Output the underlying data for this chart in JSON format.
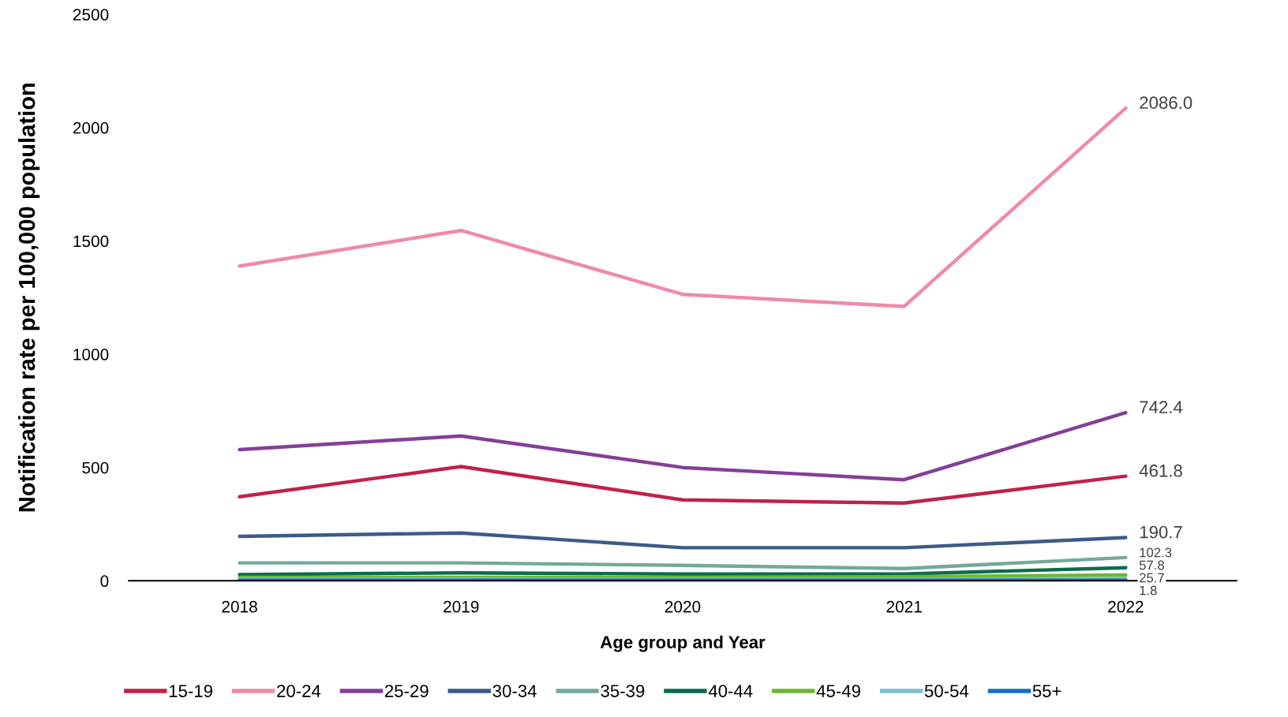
{
  "chart_data": {
    "type": "line",
    "xlabel": "Age group and Year",
    "ylabel": "Notification rate per 100,000 population",
    "categories": [
      "2018",
      "2019",
      "2020",
      "2021",
      "2022"
    ],
    "ylim": [
      0,
      2500
    ],
    "yticks": [
      0,
      500,
      1000,
      1500,
      2000,
      2500
    ],
    "grid": false,
    "legend": "bottom",
    "marker": "none",
    "line_style": "solid",
    "series": [
      {
        "name": "15-19",
        "color": "#c0214a",
        "values": [
          371,
          504,
          357,
          343,
          461.8
        ],
        "value_labels": [
          null,
          null,
          null,
          null,
          "461.8"
        ]
      },
      {
        "name": "20-24",
        "color": "#ef8aa6",
        "values": [
          1389,
          1546,
          1264,
          1211,
          2086.0
        ],
        "value_labels": [
          null,
          null,
          null,
          null,
          "2086.0"
        ]
      },
      {
        "name": "25-29",
        "color": "#843f98",
        "values": [
          579,
          639,
          500,
          446,
          742.4
        ],
        "value_labels": [
          null,
          null,
          null,
          null,
          "742.4"
        ]
      },
      {
        "name": "30-34",
        "color": "#3d5a8a",
        "values": [
          196,
          211,
          146,
          146,
          190.7
        ],
        "value_labels": [
          null,
          null,
          null,
          null,
          "190.7"
        ]
      },
      {
        "name": "35-39",
        "color": "#74a89c",
        "values": [
          79,
          79,
          68,
          54,
          102.3
        ],
        "value_labels": [
          null,
          null,
          null,
          null,
          "102.3"
        ]
      },
      {
        "name": "40-44",
        "color": "#0b6b50",
        "values": [
          27,
          35,
          30,
          30,
          57.8
        ],
        "value_labels": [
          null,
          null,
          null,
          null,
          "57.8"
        ]
      },
      {
        "name": "45-49",
        "color": "#6ab82e",
        "values": [
          15,
          15,
          15,
          18,
          25.7
        ],
        "value_labels": [
          null,
          null,
          null,
          null,
          "25.7"
        ]
      },
      {
        "name": "50-54",
        "color": "#7dbfce",
        "values": [
          8,
          8,
          7,
          7,
          10
        ]
      },
      {
        "name": "55+",
        "color": "#1170c4",
        "values": [
          2,
          2,
          2,
          2,
          1.8
        ],
        "value_labels": [
          null,
          null,
          null,
          null,
          "1.8"
        ]
      }
    ]
  }
}
